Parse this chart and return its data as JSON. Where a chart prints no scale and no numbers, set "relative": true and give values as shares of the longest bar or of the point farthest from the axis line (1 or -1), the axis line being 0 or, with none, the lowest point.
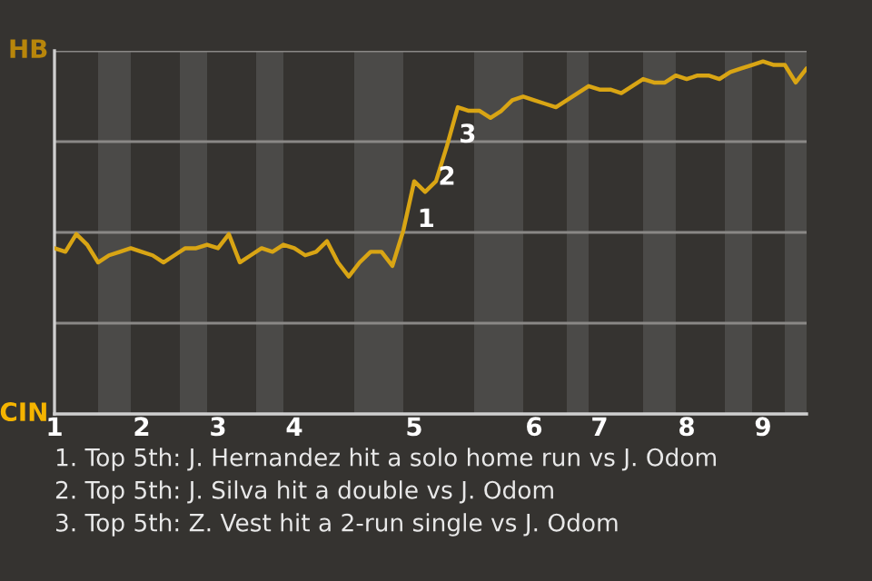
{
  "chart_data": {
    "type": "line",
    "relative": true,
    "categories": [
      "1",
      null,
      null,
      null,
      null,
      null,
      null,
      null,
      "2",
      null,
      null,
      null,
      null,
      null,
      null,
      "3",
      null,
      null,
      null,
      null,
      null,
      null,
      "4",
      null,
      null,
      null,
      null,
      null,
      null,
      null,
      null,
      null,
      null,
      "5",
      null,
      null,
      null,
      null,
      null,
      null,
      null,
      null,
      null,
      null,
      "6",
      null,
      null,
      null,
      null,
      null,
      "7",
      null,
      null,
      null,
      null,
      null,
      null,
      null,
      "8",
      null,
      null,
      null,
      null,
      null,
      null,
      "9",
      null,
      null,
      null,
      null
    ],
    "series": [
      {
        "color": "#d9a514",
        "values": [
          0.47,
          0.46,
          0.51,
          0.48,
          0.43,
          0.45,
          0.46,
          0.47,
          0.46,
          0.45,
          0.43,
          0.45,
          0.47,
          0.47,
          0.48,
          0.47,
          0.51,
          0.43,
          0.45,
          0.47,
          0.46,
          0.48,
          0.47,
          0.45,
          0.46,
          0.49,
          0.43,
          0.39,
          0.43,
          0.46,
          0.46,
          0.42,
          0.52,
          0.66,
          0.63,
          0.66,
          0.76,
          0.87,
          0.86,
          0.86,
          0.84,
          0.86,
          0.89,
          0.9,
          0.89,
          0.88,
          0.87,
          0.89,
          0.91,
          0.93,
          0.92,
          0.92,
          0.91,
          0.93,
          0.95,
          0.94,
          0.94,
          0.96,
          0.95,
          0.96,
          0.96,
          0.95,
          0.97,
          0.98,
          0.99,
          1,
          0.99,
          0.99,
          0.94,
          0.98
        ]
      }
    ],
    "grid": "y",
    "annotations": [
      "HB",
      "CIN",
      "1",
      "2",
      "3",
      "1. Top 5th: J. Hernandez hit a solo home run vs J. Odom",
      "2. Top 5th: J. Silva hit a double vs J. Odom",
      "3. Top 5th: Z. Vest hit a 2-run single vs J. Odom"
    ]
  }
}
